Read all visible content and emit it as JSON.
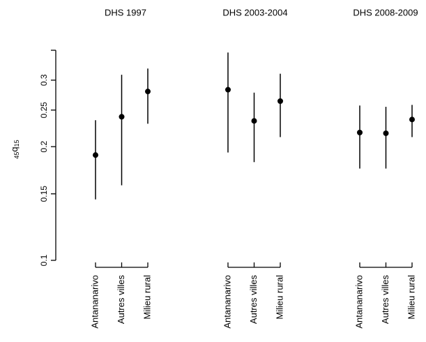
{
  "chart_data": {
    "type": "scatter",
    "subtype": "point-with-error-bars",
    "y_scale": "log",
    "ylim": [
      0.1,
      0.36
    ],
    "y_ticks": [
      "0.1",
      "0.15",
      "0.2",
      "0.25",
      "0.3"
    ],
    "ylabel": {
      "main": "q",
      "pre_sub": "45",
      "post_sub": "15"
    },
    "grid": false,
    "categories": [
      "Antananarivo",
      "Autres villes",
      "Milieu rural"
    ],
    "panels": [
      {
        "title": "DHS 1997",
        "points": [
          {
            "category": "Antananarivo",
            "value": 0.19,
            "lower": 0.145,
            "upper": 0.235
          },
          {
            "category": "Autres villes",
            "value": 0.24,
            "lower": 0.158,
            "upper": 0.31
          },
          {
            "category": "Milieu rural",
            "value": 0.28,
            "lower": 0.23,
            "upper": 0.322
          }
        ]
      },
      {
        "title": "DHS 2003-2004",
        "points": [
          {
            "category": "Antananarivo",
            "value": 0.283,
            "lower": 0.193,
            "upper": 0.355
          },
          {
            "category": "Autres villes",
            "value": 0.234,
            "lower": 0.182,
            "upper": 0.278
          },
          {
            "category": "Milieu rural",
            "value": 0.264,
            "lower": 0.212,
            "upper": 0.312
          }
        ]
      },
      {
        "title": "DHS 2008-2009",
        "points": [
          {
            "category": "Antananarivo",
            "value": 0.218,
            "lower": 0.175,
            "upper": 0.257
          },
          {
            "category": "Autres villes",
            "value": 0.217,
            "lower": 0.175,
            "upper": 0.255
          },
          {
            "category": "Milieu rural",
            "value": 0.236,
            "lower": 0.212,
            "upper": 0.258
          }
        ]
      }
    ]
  }
}
